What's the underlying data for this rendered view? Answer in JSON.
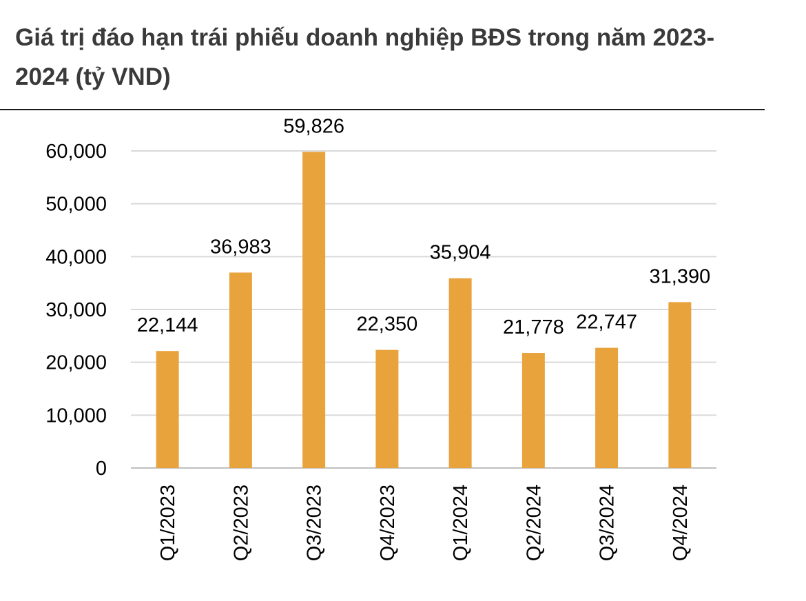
{
  "title": "Giá trị đáo hạn trái phiếu doanh nghiệp BĐS trong năm 2023-2024 (tỷ VND)",
  "chart_data": {
    "type": "bar",
    "title": "Giá trị đáo hạn trái phiếu doanh nghiệp BĐS trong năm 2023-2024 (tỷ VND)",
    "categories": [
      "Q1/2023",
      "Q2/2023",
      "Q3/2023",
      "Q4/2023",
      "Q1/2024",
      "Q2/2024",
      "Q3/2024",
      "Q4/2024"
    ],
    "values": [
      22144,
      36983,
      59826,
      22350,
      35904,
      21778,
      22747,
      31390
    ],
    "data_labels": [
      "22,144",
      "36,983",
      "59,826",
      "22,350",
      "35,904",
      "21,778",
      "22,747",
      "31,390"
    ],
    "yticks": [
      "0",
      "10,000",
      "20,000",
      "30,000",
      "40,000",
      "50,000",
      "60,000"
    ],
    "ylim": [
      0,
      60000
    ],
    "xlabel": "",
    "ylabel": "",
    "grid": true,
    "legend": "none",
    "bar_color": "#E8A33D",
    "grid_color": "#D9D9D9"
  }
}
